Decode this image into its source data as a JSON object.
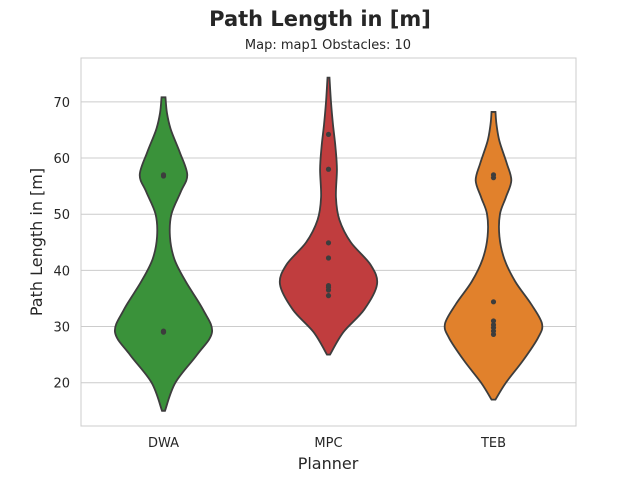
{
  "chart_data": {
    "type": "violin",
    "title": "Path Length in [m]",
    "subtitle": "Map: map1 Obstacles: 10",
    "xlabel": "Planner",
    "ylabel": "Path Length in [m]",
    "categories": [
      "DWA",
      "MPC",
      "TEB"
    ],
    "ylim": [
      12.3,
      77.8
    ],
    "yticks": [
      20,
      30,
      40,
      50,
      60,
      70
    ],
    "grid": true,
    "colors": [
      "#3a923a",
      "#c03d3e",
      "#e1812c"
    ],
    "series": [
      {
        "values": [
          29.0,
          29.2,
          29.1,
          56.8,
          57.0
        ],
        "range": [
          15.0,
          70.8
        ],
        "profile": [
          [
            15.0,
            0.03
          ],
          [
            20.0,
            0.24
          ],
          [
            25.0,
            0.68
          ],
          [
            29.0,
            0.98
          ],
          [
            33.0,
            0.8
          ],
          [
            38.0,
            0.45
          ],
          [
            42.0,
            0.22
          ],
          [
            46.0,
            0.13
          ],
          [
            50.0,
            0.16
          ],
          [
            54.0,
            0.35
          ],
          [
            57.0,
            0.48
          ],
          [
            61.0,
            0.33
          ],
          [
            65.0,
            0.15
          ],
          [
            68.0,
            0.07
          ],
          [
            70.8,
            0.04
          ]
        ]
      },
      {
        "values": [
          35.5,
          36.5,
          37.0,
          37.3,
          42.2,
          44.9,
          58.0,
          64.2
        ],
        "range": [
          25.0,
          74.3
        ],
        "profile": [
          [
            25.0,
            0.03
          ],
          [
            29.0,
            0.3
          ],
          [
            33.0,
            0.72
          ],
          [
            37.5,
            0.98
          ],
          [
            41.0,
            0.85
          ],
          [
            45.0,
            0.45
          ],
          [
            49.0,
            0.22
          ],
          [
            53.0,
            0.15
          ],
          [
            58.0,
            0.17
          ],
          [
            62.0,
            0.14
          ],
          [
            66.0,
            0.09
          ],
          [
            70.0,
            0.05
          ],
          [
            74.3,
            0.02
          ]
        ]
      },
      {
        "values": [
          28.6,
          29.2,
          29.8,
          30.3,
          31.0,
          34.4,
          56.5,
          57.0
        ],
        "range": [
          17.0,
          68.2
        ],
        "profile": [
          [
            17.0,
            0.04
          ],
          [
            20.0,
            0.25
          ],
          [
            24.0,
            0.6
          ],
          [
            28.0,
            0.9
          ],
          [
            30.5,
            0.98
          ],
          [
            34.0,
            0.76
          ],
          [
            38.0,
            0.44
          ],
          [
            42.0,
            0.22
          ],
          [
            46.0,
            0.12
          ],
          [
            50.0,
            0.13
          ],
          [
            53.0,
            0.25
          ],
          [
            56.0,
            0.36
          ],
          [
            59.0,
            0.27
          ],
          [
            63.0,
            0.12
          ],
          [
            66.0,
            0.06
          ],
          [
            68.2,
            0.04
          ]
        ]
      }
    ]
  }
}
